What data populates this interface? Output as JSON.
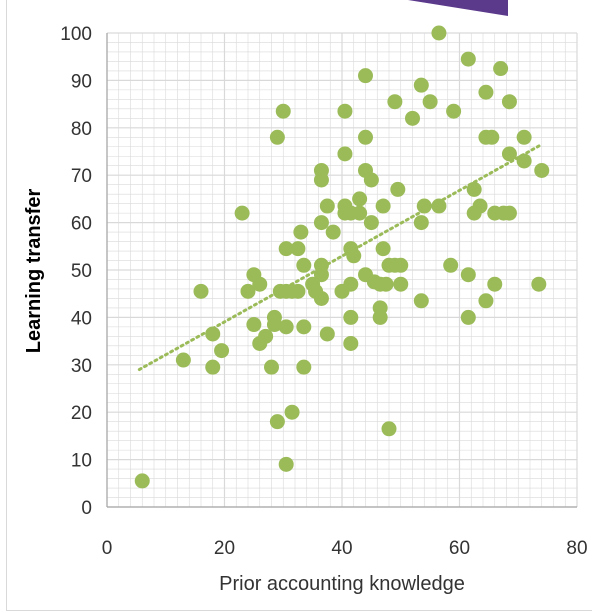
{
  "chart_data": {
    "type": "scatter",
    "title": "",
    "xlabel": "Prior accounting knowledge",
    "ylabel": "Learning transfer",
    "xlim": [
      0,
      80
    ],
    "ylim": [
      0,
      100
    ],
    "x_ticks": [
      "0",
      "20",
      "40",
      "60",
      "80"
    ],
    "y_ticks": [
      "0",
      "10",
      "20",
      "30",
      "40",
      "50",
      "60",
      "70",
      "80",
      "90",
      "100"
    ],
    "grid": "major and minor, both axes",
    "legend": "none",
    "trendline": {
      "style": "dotted linear",
      "x": [
        5.5,
        74
      ],
      "y": [
        29,
        76.5
      ]
    },
    "colors": {
      "points": "#9bbb59",
      "grid": "#d9d9d9",
      "axis": "#a6a6a6",
      "accent": "#5b3a8c"
    },
    "points": [
      {
        "x": 6,
        "y": 5.5
      },
      {
        "x": 13,
        "y": 31
      },
      {
        "x": 16,
        "y": 45.5
      },
      {
        "x": 18,
        "y": 36.5
      },
      {
        "x": 18,
        "y": 29.5
      },
      {
        "x": 19.5,
        "y": 33
      },
      {
        "x": 23,
        "y": 62
      },
      {
        "x": 24,
        "y": 45.5
      },
      {
        "x": 25,
        "y": 49
      },
      {
        "x": 25,
        "y": 38.5
      },
      {
        "x": 26,
        "y": 47
      },
      {
        "x": 26,
        "y": 34.5
      },
      {
        "x": 27,
        "y": 36
      },
      {
        "x": 28,
        "y": 29.5
      },
      {
        "x": 28.5,
        "y": 40
      },
      {
        "x": 28.5,
        "y": 38.5
      },
      {
        "x": 29,
        "y": 78
      },
      {
        "x": 29,
        "y": 18
      },
      {
        "x": 29.5,
        "y": 45.5
      },
      {
        "x": 30,
        "y": 83.5
      },
      {
        "x": 30.5,
        "y": 45.5
      },
      {
        "x": 30.5,
        "y": 54.5
      },
      {
        "x": 30.5,
        "y": 38
      },
      {
        "x": 30.5,
        "y": 9
      },
      {
        "x": 31.5,
        "y": 45.5
      },
      {
        "x": 31.5,
        "y": 20
      },
      {
        "x": 32.5,
        "y": 54.5
      },
      {
        "x": 32.5,
        "y": 45.5
      },
      {
        "x": 33,
        "y": 58
      },
      {
        "x": 33.5,
        "y": 51
      },
      {
        "x": 33.5,
        "y": 38
      },
      {
        "x": 33.5,
        "y": 29.5
      },
      {
        "x": 35,
        "y": 47
      },
      {
        "x": 35.5,
        "y": 45.5
      },
      {
        "x": 36.5,
        "y": 71
      },
      {
        "x": 36.5,
        "y": 69
      },
      {
        "x": 36.5,
        "y": 60
      },
      {
        "x": 36.5,
        "y": 51
      },
      {
        "x": 36.5,
        "y": 49
      },
      {
        "x": 36.5,
        "y": 44
      },
      {
        "x": 37.5,
        "y": 63.5
      },
      {
        "x": 37.5,
        "y": 36.5
      },
      {
        "x": 38.5,
        "y": 58
      },
      {
        "x": 40,
        "y": 45.5
      },
      {
        "x": 40.5,
        "y": 83.5
      },
      {
        "x": 40.5,
        "y": 74.5
      },
      {
        "x": 40.5,
        "y": 63.5
      },
      {
        "x": 40.5,
        "y": 62
      },
      {
        "x": 41.5,
        "y": 62
      },
      {
        "x": 41.5,
        "y": 54.5
      },
      {
        "x": 41.5,
        "y": 47
      },
      {
        "x": 41.5,
        "y": 40
      },
      {
        "x": 41.5,
        "y": 34.5
      },
      {
        "x": 42,
        "y": 53
      },
      {
        "x": 43,
        "y": 65
      },
      {
        "x": 43,
        "y": 62
      },
      {
        "x": 44,
        "y": 91
      },
      {
        "x": 44,
        "y": 78
      },
      {
        "x": 44,
        "y": 71
      },
      {
        "x": 44,
        "y": 49
      },
      {
        "x": 45,
        "y": 69
      },
      {
        "x": 45,
        "y": 60
      },
      {
        "x": 45.5,
        "y": 47.5
      },
      {
        "x": 46.5,
        "y": 47
      },
      {
        "x": 46.5,
        "y": 42
      },
      {
        "x": 46.5,
        "y": 40
      },
      {
        "x": 47,
        "y": 63.5
      },
      {
        "x": 47,
        "y": 54.5
      },
      {
        "x": 47.5,
        "y": 47
      },
      {
        "x": 48,
        "y": 51
      },
      {
        "x": 48,
        "y": 16.5
      },
      {
        "x": 49,
        "y": 85.5
      },
      {
        "x": 49,
        "y": 51
      },
      {
        "x": 49.5,
        "y": 67
      },
      {
        "x": 50,
        "y": 51
      },
      {
        "x": 50,
        "y": 47
      },
      {
        "x": 52,
        "y": 82
      },
      {
        "x": 53.5,
        "y": 89
      },
      {
        "x": 53.5,
        "y": 60
      },
      {
        "x": 53.5,
        "y": 43.5
      },
      {
        "x": 54,
        "y": 63.5
      },
      {
        "x": 55,
        "y": 85.5
      },
      {
        "x": 56.5,
        "y": 100
      },
      {
        "x": 56.5,
        "y": 63.5
      },
      {
        "x": 58.5,
        "y": 51
      },
      {
        "x": 59,
        "y": 83.5
      },
      {
        "x": 61.5,
        "y": 94.5
      },
      {
        "x": 61.5,
        "y": 49
      },
      {
        "x": 61.5,
        "y": 40
      },
      {
        "x": 62.5,
        "y": 67
      },
      {
        "x": 62.5,
        "y": 62
      },
      {
        "x": 63.5,
        "y": 63.5
      },
      {
        "x": 64.5,
        "y": 87.5
      },
      {
        "x": 64.5,
        "y": 78
      },
      {
        "x": 64.5,
        "y": 43.5
      },
      {
        "x": 65.5,
        "y": 78
      },
      {
        "x": 66,
        "y": 62
      },
      {
        "x": 66,
        "y": 47
      },
      {
        "x": 67,
        "y": 92.5
      },
      {
        "x": 67.5,
        "y": 62
      },
      {
        "x": 68.5,
        "y": 85.5
      },
      {
        "x": 68.5,
        "y": 74.5
      },
      {
        "x": 68.5,
        "y": 62
      },
      {
        "x": 71,
        "y": 78
      },
      {
        "x": 71,
        "y": 73
      },
      {
        "x": 73.5,
        "y": 47
      },
      {
        "x": 74,
        "y": 71
      }
    ]
  }
}
